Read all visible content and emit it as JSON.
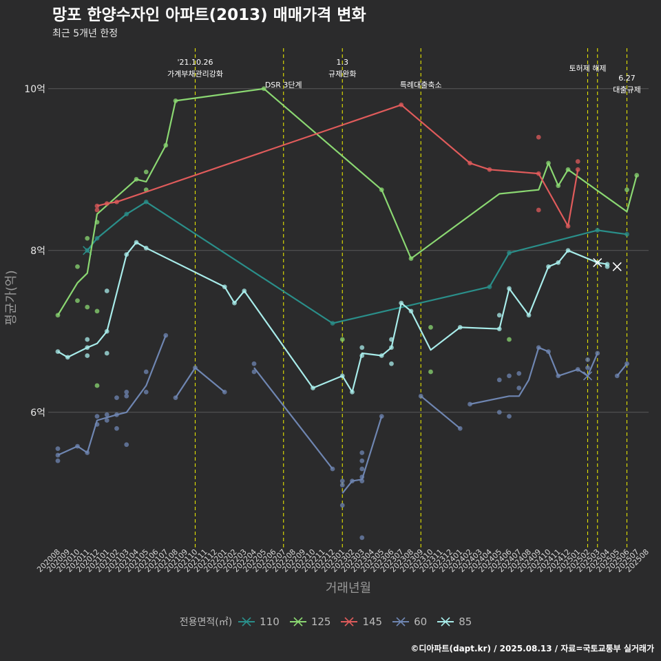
{
  "title": "망포 한양수자인 아파트(2013) 매매가격 변화",
  "subtitle": "최근 5개년 한정",
  "caption": "©디아파트(dapt.kr) / 2025.08.13 / 자료=국토교통부 실거래가",
  "chart_data": {
    "type": "line",
    "xlabel": "거래년월",
    "ylabel": "평균가(억)",
    "ylim": [
      4.33,
      10.5
    ],
    "yticks": [
      {
        "v": 6,
        "label": "6억"
      },
      {
        "v": 8,
        "label": "8억"
      },
      {
        "v": 10,
        "label": "10억"
      }
    ],
    "x": [
      "202008",
      "202009",
      "202010",
      "202011",
      "202012",
      "202101",
      "202102",
      "202103",
      "202104",
      "202105",
      "202106",
      "202107",
      "202108",
      "202109",
      "202110",
      "202111",
      "202112",
      "202201",
      "202202",
      "202203",
      "202204",
      "202205",
      "202206",
      "202207",
      "202208",
      "202209",
      "202210",
      "202211",
      "202212",
      "202301",
      "202302",
      "202303",
      "202304",
      "202305",
      "202306",
      "202307",
      "202308",
      "202309",
      "202310",
      "202311",
      "202312",
      "202401",
      "202402",
      "202403",
      "202404",
      "202405",
      "202406",
      "202407",
      "202408",
      "202409",
      "202410",
      "202411",
      "202412",
      "202501",
      "202502",
      "202503",
      "202504",
      "202505",
      "202506",
      "202507",
      "202508"
    ],
    "events": [
      {
        "x": 14,
        "label": "'21.10.26\n가계부채관리강화"
      },
      {
        "x": 23,
        "label": "DSR 3단계"
      },
      {
        "x": 29,
        "label": "1.3\n규제완화"
      },
      {
        "x": 37,
        "label": "특례대출축소"
      },
      {
        "x": 54,
        "label": "토허제 해제"
      },
      {
        "x": 55,
        "label": ""
      },
      {
        "x": 58,
        "label": "6.27\n대출규제"
      }
    ],
    "legend_title": "전용면적(㎡)",
    "series": [
      {
        "name": "110",
        "color": "#2a8f8a",
        "line": [
          [
            3,
            8.0
          ],
          [
            4,
            8.15
          ],
          [
            7,
            8.45
          ],
          [
            9,
            8.6
          ],
          [
            28,
            7.1
          ],
          [
            44,
            7.55
          ],
          [
            46,
            7.97
          ],
          [
            55,
            8.25
          ],
          [
            58,
            8.2
          ]
        ],
        "points": [
          [
            3,
            8.0
          ],
          [
            4,
            8.15
          ],
          [
            7,
            8.45
          ],
          [
            9,
            8.6
          ],
          [
            28,
            7.1
          ],
          [
            44,
            7.55
          ],
          [
            46,
            7.97
          ],
          [
            55,
            8.25
          ],
          [
            58,
            8.2
          ]
        ],
        "crosses": [
          [
            3,
            8.0
          ]
        ]
      },
      {
        "name": "125",
        "color": "#8bd872",
        "line": [
          [
            0,
            7.2
          ],
          [
            2,
            7.6
          ],
          [
            3,
            7.72
          ],
          [
            4,
            8.45
          ],
          [
            8,
            8.88
          ],
          [
            9,
            8.85
          ],
          [
            11,
            9.3
          ],
          [
            12,
            9.85
          ],
          [
            21,
            10.0
          ],
          [
            33,
            8.75
          ],
          [
            36,
            7.9
          ],
          [
            45,
            8.7
          ],
          [
            49,
            8.75
          ],
          [
            50,
            9.08
          ],
          [
            51,
            8.8
          ],
          [
            52,
            9.0
          ],
          [
            58,
            8.48
          ],
          [
            59,
            8.93
          ]
        ],
        "points": [
          [
            0,
            7.2
          ],
          [
            2,
            7.38
          ],
          [
            2,
            7.8
          ],
          [
            3,
            8.15
          ],
          [
            3,
            7.3
          ],
          [
            4,
            8.35
          ],
          [
            4,
            7.25
          ],
          [
            4,
            6.33
          ],
          [
            8,
            8.88
          ],
          [
            9,
            8.97
          ],
          [
            9,
            8.75
          ],
          [
            11,
            9.3
          ],
          [
            12,
            9.85
          ],
          [
            21,
            10.0
          ],
          [
            29,
            6.9
          ],
          [
            33,
            8.75
          ],
          [
            36,
            7.9
          ],
          [
            38,
            7.05
          ],
          [
            38,
            6.5
          ],
          [
            46,
            6.9
          ],
          [
            50,
            9.08
          ],
          [
            51,
            8.8
          ],
          [
            52,
            9.0
          ],
          [
            58,
            8.75
          ],
          [
            59,
            8.93
          ]
        ],
        "crosses": []
      },
      {
        "name": "145",
        "color": "#e05b5b",
        "line": [
          [
            4,
            8.55
          ],
          [
            5,
            8.58
          ],
          [
            6,
            8.6
          ],
          [
            35,
            9.8
          ],
          [
            42,
            9.08
          ],
          [
            44,
            9.0
          ],
          [
            49,
            8.95
          ],
          [
            52,
            8.3
          ],
          [
            53,
            9.0
          ]
        ],
        "points": [
          [
            4,
            8.55
          ],
          [
            4,
            8.5
          ],
          [
            5,
            8.58
          ],
          [
            6,
            8.6
          ],
          [
            35,
            9.8
          ],
          [
            42,
            9.08
          ],
          [
            44,
            9.0
          ],
          [
            49,
            8.95
          ],
          [
            49,
            9.4
          ],
          [
            49,
            8.5
          ],
          [
            52,
            8.3
          ],
          [
            53,
            9.0
          ],
          [
            53,
            9.1
          ]
        ],
        "crosses": []
      },
      {
        "name": "60",
        "color": "#6f86b2",
        "line": [
          [
            0,
            5.47
          ],
          [
            2,
            5.58
          ],
          [
            3,
            5.5
          ],
          [
            4,
            5.9
          ],
          [
            6,
            5.97
          ],
          [
            7,
            6.0
          ],
          [
            9,
            6.33
          ],
          [
            11,
            6.95
          ],
          [
            12,
            6.18
          ],
          [
            14,
            6.55
          ],
          [
            17,
            6.25
          ],
          [
            20,
            6.55
          ],
          [
            28,
            5.3
          ],
          [
            29,
            5.0
          ],
          [
            30,
            5.15
          ],
          [
            31,
            5.17
          ],
          [
            33,
            5.95
          ],
          [
            37,
            6.2
          ],
          [
            41,
            5.8
          ],
          [
            42,
            6.1
          ],
          [
            46,
            6.2
          ],
          [
            47,
            6.2
          ],
          [
            48,
            6.4
          ],
          [
            49,
            6.8
          ],
          [
            50,
            6.75
          ],
          [
            51,
            6.45
          ],
          [
            53,
            6.53
          ],
          [
            54,
            6.45
          ],
          [
            55,
            6.73
          ],
          [
            57,
            6.45
          ],
          [
            58,
            6.6
          ]
        ],
        "breaks": [
          7,
          10,
          12,
          16,
          18,
          28,
          30
        ],
        "points": [
          [
            0,
            5.55
          ],
          [
            0,
            5.47
          ],
          [
            0,
            5.4
          ],
          [
            2,
            5.58
          ],
          [
            3,
            5.5
          ],
          [
            4,
            5.95
          ],
          [
            4,
            5.85
          ],
          [
            5,
            5.97
          ],
          [
            5,
            5.9
          ],
          [
            6,
            5.97
          ],
          [
            6,
            6.18
          ],
          [
            6,
            5.8
          ],
          [
            7,
            6.25
          ],
          [
            7,
            6.2
          ],
          [
            7,
            5.6
          ],
          [
            9,
            6.5
          ],
          [
            9,
            6.25
          ],
          [
            11,
            6.95
          ],
          [
            12,
            6.18
          ],
          [
            14,
            6.55
          ],
          [
            17,
            6.25
          ],
          [
            20,
            6.6
          ],
          [
            20,
            6.5
          ],
          [
            28,
            5.3
          ],
          [
            29,
            5.15
          ],
          [
            29,
            5.1
          ],
          [
            29,
            4.85
          ],
          [
            30,
            5.15
          ],
          [
            31,
            5.5
          ],
          [
            31,
            5.4
          ],
          [
            31,
            5.3
          ],
          [
            31,
            5.2
          ],
          [
            31,
            5.15
          ],
          [
            31,
            4.45
          ],
          [
            33,
            5.95
          ],
          [
            37,
            6.2
          ],
          [
            41,
            5.8
          ],
          [
            42,
            6.1
          ],
          [
            45,
            6.0
          ],
          [
            45,
            6.4
          ],
          [
            46,
            6.45
          ],
          [
            46,
            5.95
          ],
          [
            47,
            6.3
          ],
          [
            47,
            6.48
          ],
          [
            49,
            6.8
          ],
          [
            50,
            6.75
          ],
          [
            51,
            6.45
          ],
          [
            53,
            6.53
          ],
          [
            54,
            6.65
          ],
          [
            54,
            6.55
          ],
          [
            55,
            6.73
          ],
          [
            57,
            6.45
          ],
          [
            58,
            6.6
          ]
        ],
        "crosses": [
          [
            54,
            6.45
          ]
        ]
      },
      {
        "name": "85",
        "color": "#a8ecea",
        "line": [
          [
            0,
            6.75
          ],
          [
            1,
            6.68
          ],
          [
            3,
            6.8
          ],
          [
            4,
            6.85
          ],
          [
            5,
            7.0
          ],
          [
            7,
            7.95
          ],
          [
            8,
            8.1
          ],
          [
            9,
            8.03
          ],
          [
            17,
            7.55
          ],
          [
            18,
            7.35
          ],
          [
            19,
            7.5
          ],
          [
            26,
            6.3
          ],
          [
            29,
            6.45
          ],
          [
            30,
            6.25
          ],
          [
            31,
            6.73
          ],
          [
            33,
            6.7
          ],
          [
            34,
            6.8
          ],
          [
            35,
            7.35
          ],
          [
            36,
            7.25
          ],
          [
            38,
            6.77
          ],
          [
            41,
            7.05
          ],
          [
            45,
            7.03
          ],
          [
            46,
            7.53
          ],
          [
            48,
            7.2
          ],
          [
            50,
            7.8
          ],
          [
            51,
            7.85
          ],
          [
            52,
            8.0
          ],
          [
            55,
            7.85
          ],
          [
            56,
            7.83
          ]
        ],
        "points": [
          [
            0,
            6.75
          ],
          [
            1,
            6.68
          ],
          [
            3,
            6.9
          ],
          [
            3,
            6.8
          ],
          [
            3,
            6.7
          ],
          [
            5,
            7.5
          ],
          [
            5,
            7.0
          ],
          [
            5,
            6.73
          ],
          [
            7,
            7.95
          ],
          [
            8,
            8.1
          ],
          [
            9,
            8.03
          ],
          [
            17,
            7.55
          ],
          [
            18,
            7.35
          ],
          [
            19,
            7.5
          ],
          [
            26,
            6.3
          ],
          [
            29,
            6.45
          ],
          [
            30,
            6.25
          ],
          [
            31,
            6.8
          ],
          [
            31,
            6.7
          ],
          [
            33,
            6.7
          ],
          [
            34,
            6.8
          ],
          [
            34,
            6.9
          ],
          [
            34,
            6.6
          ],
          [
            35,
            7.35
          ],
          [
            36,
            7.25
          ],
          [
            41,
            7.05
          ],
          [
            45,
            7.03
          ],
          [
            45,
            7.2
          ],
          [
            46,
            7.53
          ],
          [
            48,
            7.2
          ],
          [
            50,
            7.8
          ],
          [
            51,
            7.85
          ],
          [
            52,
            8.0
          ],
          [
            55,
            7.85
          ],
          [
            56,
            7.83
          ],
          [
            56,
            7.8
          ]
        ],
        "crosses": [
          [
            55,
            7.85
          ],
          [
            57,
            7.8
          ]
        ]
      }
    ]
  }
}
